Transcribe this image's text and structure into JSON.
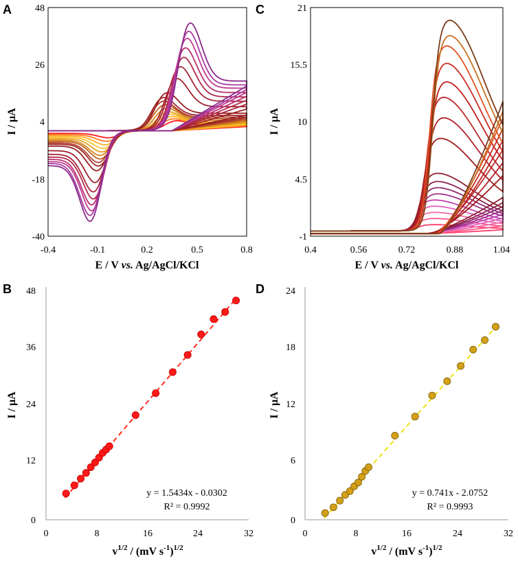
{
  "chart_data": [
    {
      "panel": "A",
      "type": "line",
      "xlabel_main": "E / V ",
      "xlabel_italic": "vs.",
      "xlabel_tail": " Ag/AgCl/KCl",
      "ylabel": "I / µA",
      "xlim": [
        -0.4,
        0.8
      ],
      "ylim": [
        -40,
        48
      ],
      "xticks": [
        "-0.4",
        "-0.1",
        "0.2",
        "0.5",
        "0.8"
      ],
      "yticks": [
        "-40",
        "-18",
        "4",
        "26",
        "48"
      ],
      "curve_model": "cv-reversible",
      "series": [
        {
          "color": "#ff1a1a",
          "peak_ox": 4.2,
          "peak_red": -3.0,
          "ox_pos": 0.36,
          "red_pos": -0.02
        },
        {
          "color": "#ff7a1a",
          "peak_ox": 5.0,
          "peak_red": -4.5,
          "ox_pos": 0.34,
          "red_pos": -0.03
        },
        {
          "color": "#ffb020",
          "peak_ox": 6.0,
          "peak_red": -6.0,
          "ox_pos": 0.33,
          "red_pos": -0.04
        },
        {
          "color": "#f4c430",
          "peak_ox": 7.0,
          "peak_red": -7.5,
          "ox_pos": 0.32,
          "red_pos": -0.05
        },
        {
          "color": "#e8a020",
          "peak_ox": 8.0,
          "peak_red": -9.0,
          "ox_pos": 0.31,
          "red_pos": -0.06
        },
        {
          "color": "#d4851a",
          "peak_ox": 9.5,
          "peak_red": -10.5,
          "ox_pos": 0.3,
          "red_pos": -0.07
        },
        {
          "color": "#c06020",
          "peak_ox": 11.0,
          "peak_red": -12.0,
          "ox_pos": 0.29,
          "red_pos": -0.07
        },
        {
          "color": "#b04030",
          "peak_ox": 12.5,
          "peak_red": -13.5,
          "ox_pos": 0.28,
          "red_pos": -0.08
        },
        {
          "color": "#a02a2a",
          "peak_ox": 14.0,
          "peak_red": -15.0,
          "ox_pos": 0.28,
          "red_pos": -0.08
        },
        {
          "color": "#9a1f1f",
          "peak_ox": 16.0,
          "peak_red": -17.0,
          "ox_pos": 0.3,
          "red_pos": -0.09
        },
        {
          "color": "#a0202a",
          "peak_ox": 22.0,
          "peak_red": -22.0,
          "ox_pos": 0.36,
          "red_pos": -0.1
        },
        {
          "color": "#a8243a",
          "peak_ox": 27.0,
          "peak_red": -26.0,
          "ox_pos": 0.38,
          "red_pos": -0.11
        },
        {
          "color": "#b02a4a",
          "peak_ox": 31.0,
          "peak_red": -29.0,
          "ox_pos": 0.4,
          "red_pos": -0.11
        },
        {
          "color": "#b83070",
          "peak_ox": 35.0,
          "peak_red": -31.5,
          "ox_pos": 0.41,
          "red_pos": -0.12
        },
        {
          "color": "#c03a90",
          "peak_ox": 39.0,
          "peak_red": -34.0,
          "ox_pos": 0.42,
          "red_pos": -0.12
        },
        {
          "color": "#a83aa0",
          "peak_ox": 42.0,
          "peak_red": -36.0,
          "ox_pos": 0.43,
          "red_pos": -0.13
        },
        {
          "color": "#8a2a8a",
          "peak_ox": 45.5,
          "peak_red": -38.5,
          "ox_pos": 0.44,
          "red_pos": -0.13
        }
      ]
    },
    {
      "panel": "C",
      "type": "line",
      "xlabel_main": "E / V ",
      "xlabel_italic": "vs.",
      "xlabel_tail": " Ag/AgCl/KCl",
      "ylabel": "I / µA",
      "xlim": [
        0.4,
        1.04
      ],
      "ylim": [
        -1,
        21
      ],
      "xticks": [
        "0.4",
        "0.56",
        "0.72",
        "0.88",
        "1.04"
      ],
      "yticks": [
        "-1",
        "4.5",
        "10",
        "15.5",
        "21"
      ],
      "curve_model": "cv-irreversible",
      "series": [
        {
          "color": "#ff3b6b",
          "peak": 0.6,
          "pos": 0.8
        },
        {
          "color": "#ff5a8a",
          "peak": 1.2,
          "pos": 0.8
        },
        {
          "color": "#f06aa8",
          "peak": 1.8,
          "pos": 0.8
        },
        {
          "color": "#e060c0",
          "peak": 2.4,
          "pos": 0.8
        },
        {
          "color": "#c040b0",
          "peak": 3.0,
          "pos": 0.8
        },
        {
          "color": "#a0308a",
          "peak": 3.6,
          "pos": 0.81
        },
        {
          "color": "#902a70",
          "peak": 4.2,
          "pos": 0.81
        },
        {
          "color": "#8a2250",
          "peak": 4.8,
          "pos": 0.81
        },
        {
          "color": "#8c1f30",
          "peak": 5.6,
          "pos": 0.81
        },
        {
          "color": "#a01a1a",
          "peak": 9.0,
          "pos": 0.82
        },
        {
          "color": "#b0202a",
          "peak": 11.0,
          "pos": 0.83
        },
        {
          "color": "#b82828",
          "peak": 13.0,
          "pos": 0.83
        },
        {
          "color": "#c02020",
          "peak": 14.5,
          "pos": 0.84
        },
        {
          "color": "#c82a20",
          "peak": 16.3,
          "pos": 0.84
        },
        {
          "color": "#e05020",
          "peak": 18.0,
          "pos": 0.84
        },
        {
          "color": "#c87020",
          "peak": 19.0,
          "pos": 0.85
        },
        {
          "color": "#7a3a1a",
          "peak": 20.5,
          "pos": 0.85
        }
      ]
    },
    {
      "panel": "B",
      "type": "scatter",
      "xlabel": "v",
      "xlabel_sup": "1/2",
      "xlabel_tail": " / (mV s",
      "xlabel_sup2": "-1",
      "xlabel_end": ")",
      "xlabel_sup3": "1/2",
      "ylabel": "I / µA",
      "xlim": [
        0,
        32
      ],
      "ylim": [
        0,
        48
      ],
      "xticks": [
        "0",
        "8",
        "16",
        "24",
        "32"
      ],
      "yticks": [
        "0",
        "12",
        "24",
        "36",
        "48"
      ],
      "marker_color": "#ff1a1a",
      "marker_edge": "#cc0000",
      "fit": {
        "slope": 1.5434,
        "intercept": -0.0302,
        "color": "#ff2a1a"
      },
      "equation": "y = 1.5434x - 0.0302",
      "r2": "R² = 0.9992",
      "x": [
        3.16,
        4.47,
        5.48,
        6.32,
        7.07,
        7.75,
        8.37,
        8.94,
        9.49,
        10.0,
        14.14,
        17.32,
        20.0,
        22.36,
        24.49,
        26.46,
        28.28,
        30.0
      ],
      "y": [
        5.5,
        7.2,
        8.6,
        9.8,
        11.0,
        12.0,
        13.0,
        14.0,
        14.7,
        15.4,
        21.9,
        26.5,
        30.9,
        34.5,
        38.8,
        42.0,
        43.5,
        45.9
      ]
    },
    {
      "panel": "D",
      "type": "scatter",
      "xlabel": "v",
      "xlabel_sup": "1/2",
      "xlabel_tail": " / (mV s",
      "xlabel_sup2": "-1",
      "xlabel_end": ")",
      "xlabel_sup3": "1/2",
      "ylabel": "I / µA",
      "xlim": [
        0,
        32
      ],
      "ylim": [
        0,
        24
      ],
      "xticks": [
        "0",
        "8",
        "16",
        "24",
        "32"
      ],
      "yticks": [
        "0",
        "6",
        "12",
        "18",
        "24"
      ],
      "marker_color": "#d4a017",
      "marker_edge": "#8a6a10",
      "fit": {
        "slope": 0.741,
        "intercept": -2.0752,
        "color": "#f0e010"
      },
      "equation": "y = 0.741x - 2.0752",
      "r2": "R² = 0.9993",
      "x": [
        3.16,
        4.47,
        5.48,
        6.32,
        7.07,
        7.75,
        8.37,
        8.94,
        9.49,
        10.0,
        14.14,
        17.32,
        20.0,
        22.36,
        24.49,
        26.46,
        28.28,
        30.0
      ],
      "y": [
        0.7,
        1.3,
        2.0,
        2.6,
        3.0,
        3.5,
        3.9,
        4.5,
        5.1,
        5.5,
        8.8,
        10.8,
        13.0,
        14.5,
        16.1,
        17.8,
        18.8,
        20.2
      ]
    }
  ]
}
